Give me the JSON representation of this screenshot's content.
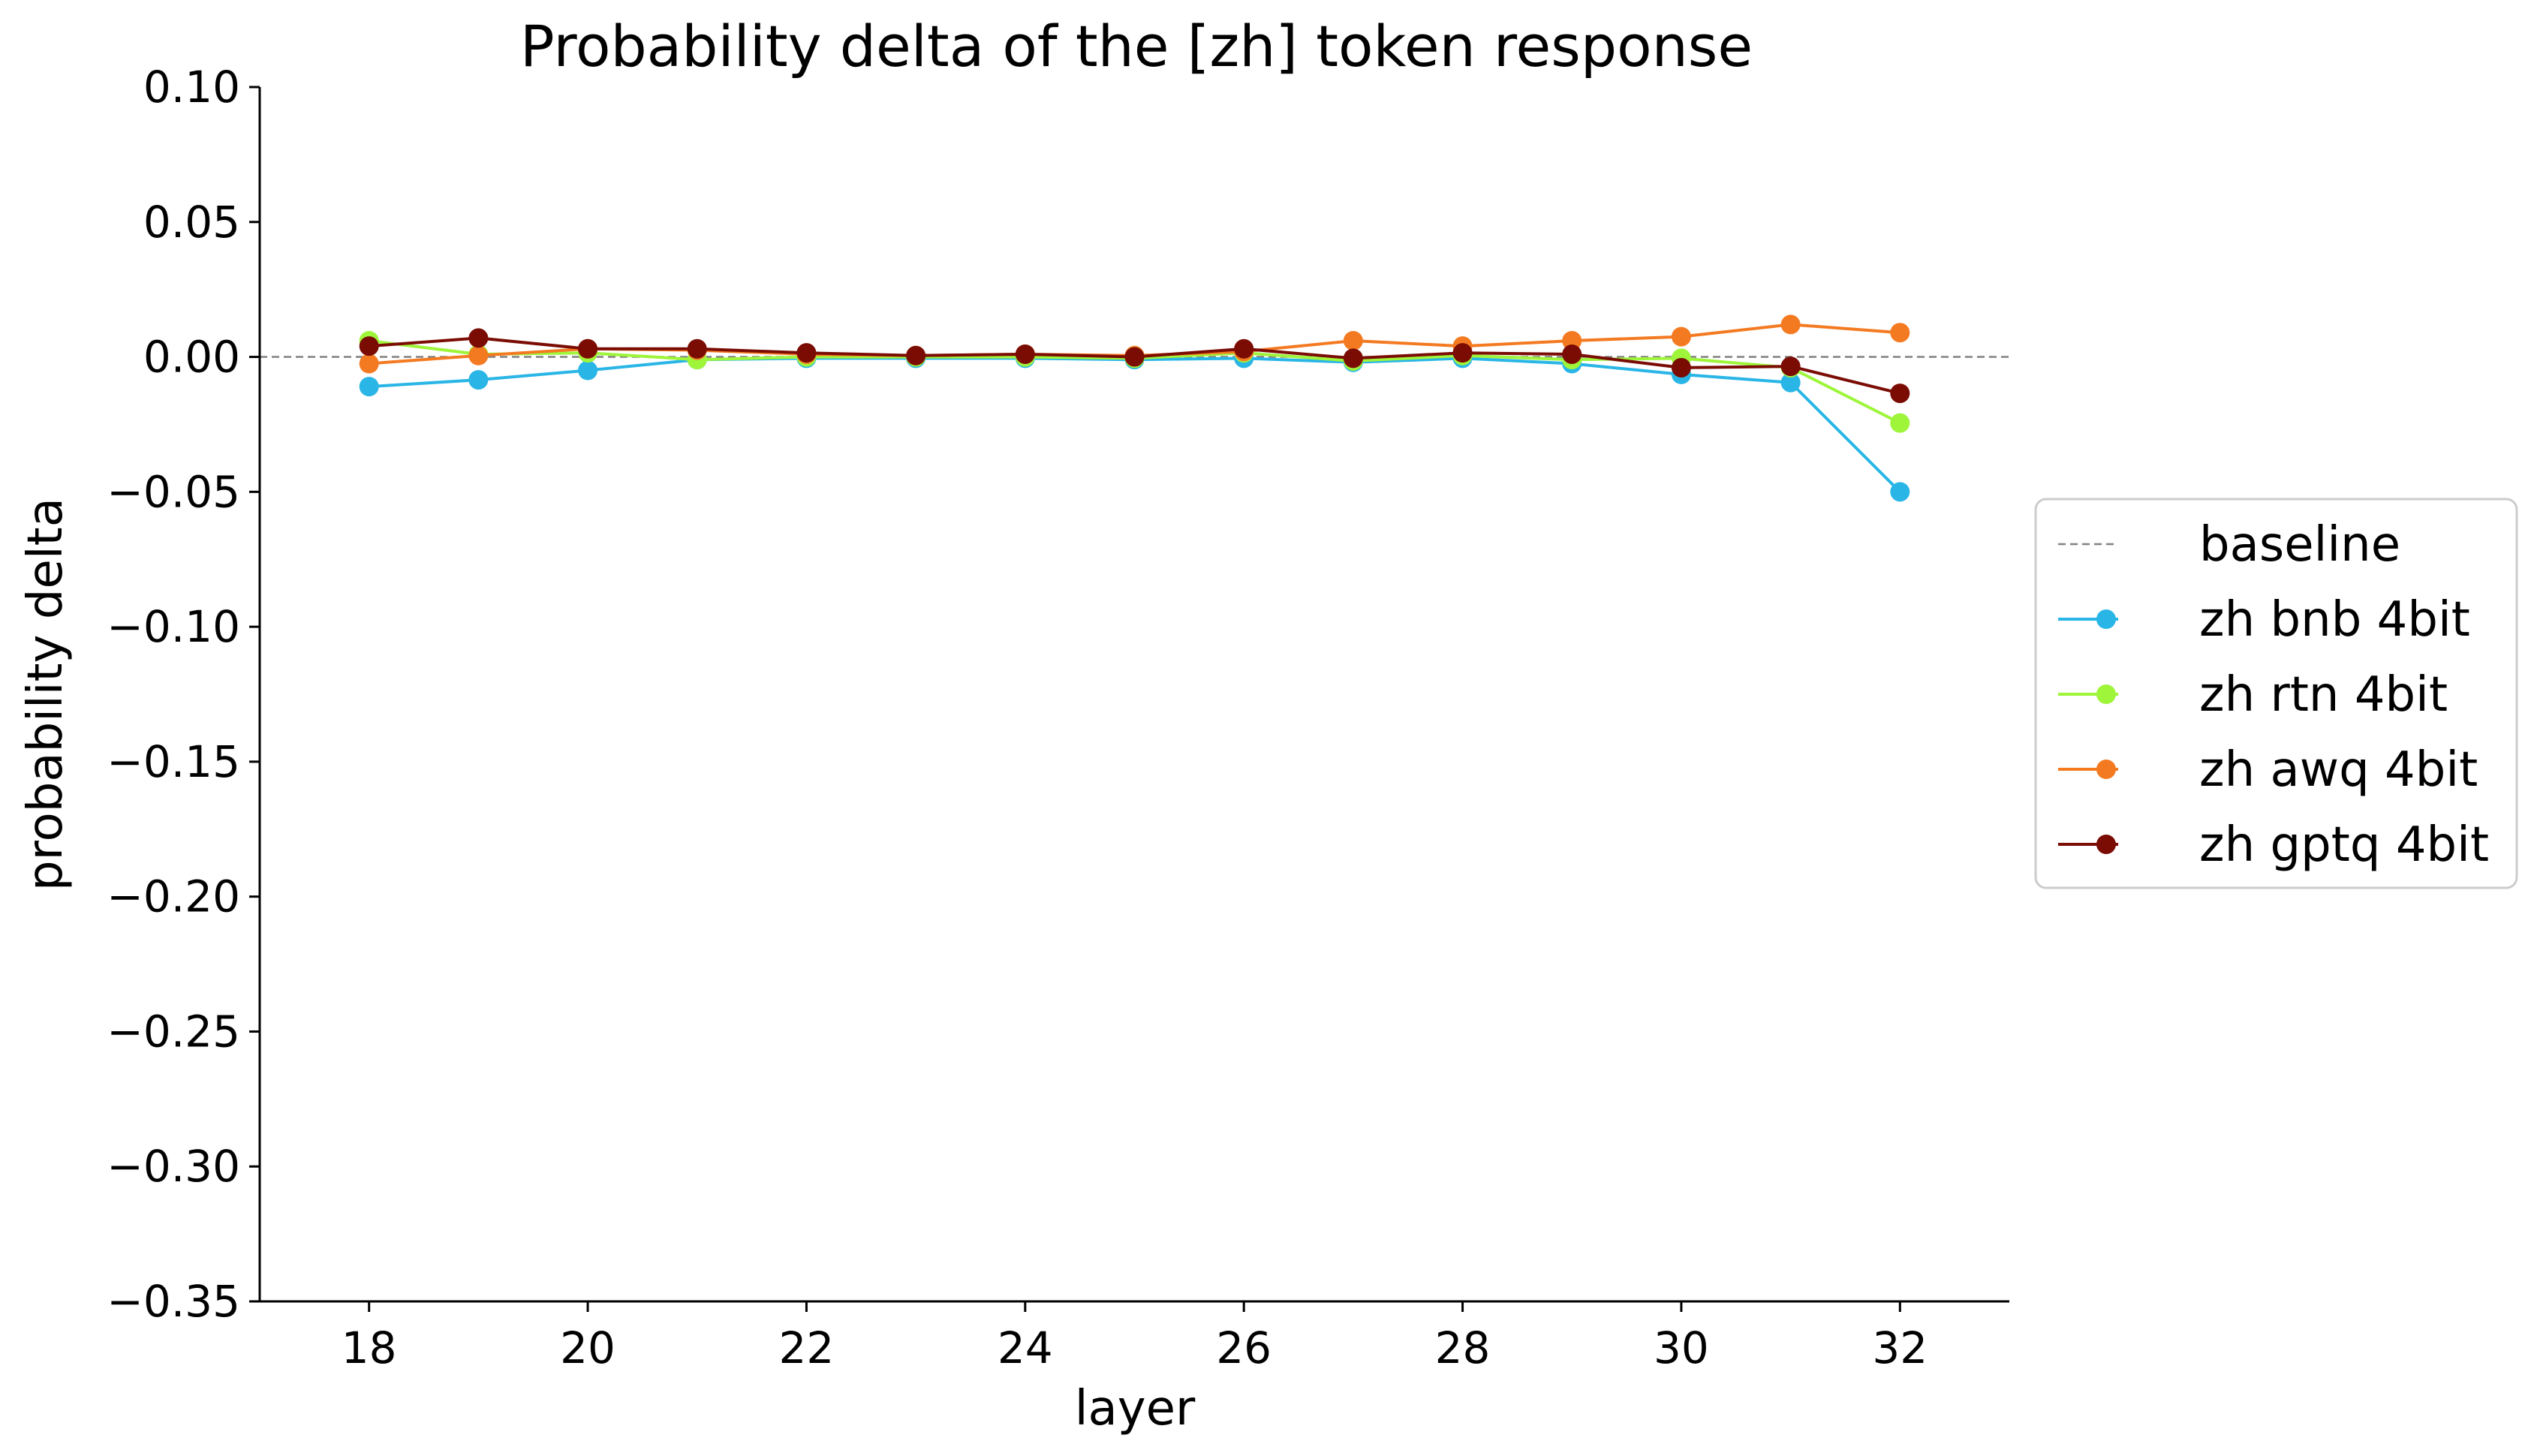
{
  "chart_data": {
    "type": "line",
    "title": "Probability delta of the [zh] token response",
    "xlabel": "layer",
    "ylabel": "probability delta",
    "xlim": [
      17,
      33
    ],
    "ylim": [
      -0.35,
      0.1
    ],
    "x_ticks": [
      18,
      20,
      22,
      24,
      26,
      28,
      30,
      32
    ],
    "x_tick_labels": [
      "18",
      "20",
      "22",
      "24",
      "26",
      "28",
      "30",
      "32"
    ],
    "y_ticks": [
      0.1,
      0.05,
      0.0,
      -0.05,
      -0.1,
      -0.15,
      -0.2,
      -0.25,
      -0.3,
      -0.35
    ],
    "y_tick_labels": [
      "0.10",
      "0.05",
      "0.00",
      "−0.05",
      "−0.10",
      "−0.15",
      "−0.20",
      "−0.25",
      "−0.30",
      "−0.35"
    ],
    "grid": false,
    "legend_position": "center-right outside",
    "baseline": {
      "name": "baseline",
      "value": 0.0,
      "color": "#808080",
      "style": "dashed"
    },
    "x": [
      18,
      19,
      20,
      21,
      22,
      23,
      24,
      25,
      26,
      27,
      28,
      29,
      30,
      31,
      32
    ],
    "series": [
      {
        "name": "zh bnb 4bit",
        "color": "#29b6e6",
        "values": [
          -0.011,
          -0.0085,
          -0.005,
          -0.001,
          -0.0005,
          -0.0005,
          -0.0005,
          -0.001,
          -0.0005,
          -0.002,
          -0.0005,
          -0.0025,
          -0.0065,
          -0.0095,
          -0.05
        ]
      },
      {
        "name": "zh rtn 4bit",
        "color": "#9ef53a",
        "values": [
          0.006,
          0.001,
          0.0015,
          -0.001,
          0.0,
          0.0,
          0.0,
          -0.0005,
          0.0015,
          -0.0015,
          0.0005,
          -0.001,
          -0.0005,
          -0.004,
          -0.0245
        ]
      },
      {
        "name": "zh awq 4bit",
        "color": "#f47a22",
        "values": [
          -0.0025,
          0.0005,
          0.003,
          0.0025,
          0.001,
          0.0005,
          0.001,
          0.0005,
          0.002,
          0.006,
          0.004,
          0.006,
          0.0075,
          0.012,
          0.009
        ]
      },
      {
        "name": "zh gptq 4bit",
        "color": "#7a0c04",
        "values": [
          0.004,
          0.007,
          0.003,
          0.003,
          0.0015,
          0.0005,
          0.001,
          0.0,
          0.003,
          -0.0005,
          0.0015,
          0.001,
          -0.004,
          -0.0035,
          -0.0135
        ]
      }
    ]
  }
}
